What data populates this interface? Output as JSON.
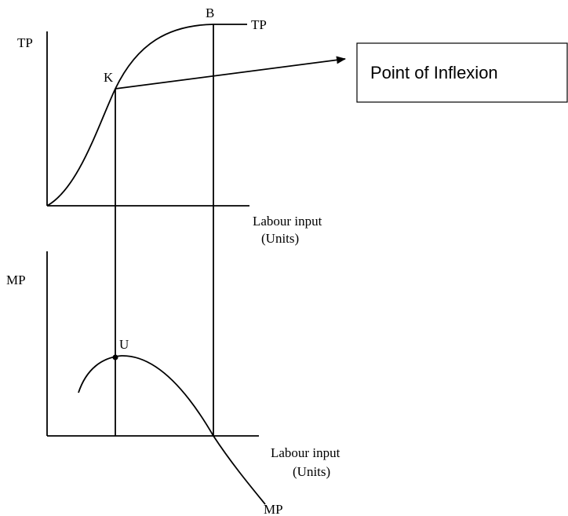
{
  "top_panel": {
    "y_axis_label": "TP",
    "point_b": "B",
    "curve_label": "TP",
    "point_k": "K",
    "x_axis_label": {
      "line1": "Labour input",
      "line2": "(Units)"
    }
  },
  "callout": {
    "text": "Point of Inflexion"
  },
  "bottom_panel": {
    "y_axis_label": "MP",
    "point_u": "U",
    "curve_label": "MP",
    "x_axis_label": {
      "line1": "Labour input",
      "line2": "(Units)"
    }
  }
}
